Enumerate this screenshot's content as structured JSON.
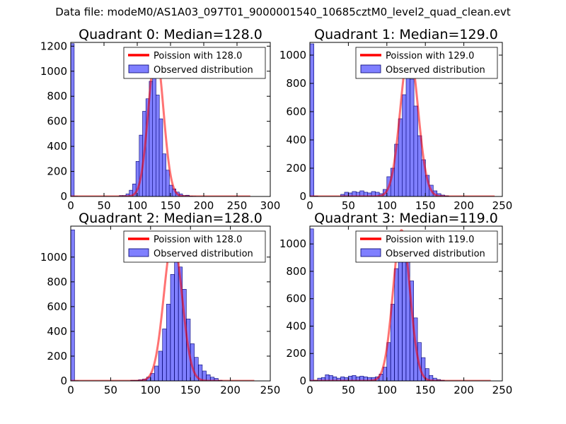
{
  "figure": {
    "suptitle": "Data file: modeM0/AS1A03_097T01_9000001540_10685cztM0_level2_quad_clean.evt"
  },
  "colors": {
    "poisson": "#ff0000",
    "hist_fill": "#7f7fff",
    "hist_edge": "#00006e",
    "axis": "#000000"
  },
  "chart_data": [
    {
      "type": "bar",
      "title": "Quadrant 0: Median=128.0",
      "xlim": [
        0,
        300
      ],
      "ylim": [
        0,
        1230
      ],
      "xticks": [
        0,
        50,
        100,
        150,
        200,
        250,
        300
      ],
      "yticks": [
        0,
        200,
        400,
        600,
        800,
        1000,
        1200
      ],
      "legend": [
        "Poission with 128.0",
        "Observed distribution"
      ],
      "legend_position": "top-right",
      "bin_width": 5.2,
      "bin_starts": [
        0,
        5.2,
        73,
        78,
        83,
        88,
        93,
        98,
        103,
        108,
        113,
        118,
        123,
        128,
        133,
        138,
        143,
        148,
        153,
        158,
        163,
        168,
        173,
        178,
        183
      ],
      "counts": [
        1220,
        2,
        8,
        8,
        20,
        50,
        100,
        280,
        490,
        680,
        780,
        920,
        1080,
        810,
        620,
        340,
        210,
        90,
        60,
        35,
        20,
        8,
        10,
        3,
        2
      ],
      "poisson_mean": 128,
      "poisson_peak": 1150,
      "poisson_range": [
        0,
        270
      ]
    },
    {
      "type": "bar",
      "title": "Quadrant 1: Median=129.0",
      "xlim": [
        0,
        250
      ],
      "ylim": [
        0,
        1090
      ],
      "xticks": [
        0,
        50,
        100,
        150,
        200,
        250
      ],
      "yticks": [
        0,
        200,
        400,
        600,
        800,
        1000
      ],
      "legend": [
        "Poission with 129.0",
        "Observed distribution"
      ],
      "legend_position": "top-right",
      "bin_width": 5.2,
      "bin_starts": [
        0,
        5.2,
        40,
        45,
        50,
        55,
        60,
        65,
        70,
        75,
        80,
        85,
        90,
        95,
        100,
        105,
        110,
        115,
        120,
        125,
        130,
        135,
        140,
        145,
        150,
        155,
        160,
        165,
        170,
        175
      ],
      "counts": [
        1080,
        3,
        15,
        30,
        25,
        35,
        30,
        40,
        30,
        25,
        35,
        30,
        20,
        50,
        140,
        200,
        370,
        550,
        720,
        900,
        830,
        640,
        430,
        260,
        150,
        80,
        40,
        20,
        10,
        5
      ],
      "poisson_mean": 129,
      "poisson_peak": 1040,
      "poisson_range": [
        0,
        240
      ]
    },
    {
      "type": "bar",
      "title": "Quadrant 2: Median=128.0",
      "xlim": [
        0,
        250
      ],
      "ylim": [
        0,
        1250
      ],
      "xticks": [
        0,
        50,
        100,
        150,
        200,
        250
      ],
      "yticks": [
        0,
        200,
        400,
        600,
        800,
        1000
      ],
      "legend": [
        "Poission with 128.0",
        "Observed distribution"
      ],
      "legend_position": "top-right",
      "bin_width": 4.8,
      "bin_starts": [
        0,
        4.8,
        75,
        80,
        85,
        90,
        95,
        100,
        105,
        110,
        115,
        120,
        125,
        130,
        135,
        140,
        145,
        150,
        155,
        160,
        165,
        170,
        175,
        180,
        185
      ],
      "counts": [
        1220,
        2,
        5,
        5,
        10,
        15,
        30,
        60,
        120,
        240,
        420,
        620,
        860,
        1000,
        920,
        740,
        500,
        300,
        190,
        130,
        80,
        50,
        30,
        20,
        5
      ],
      "poisson_mean": 128,
      "poisson_peak": 1150,
      "poisson_range": [
        0,
        230
      ]
    },
    {
      "type": "bar",
      "title": "Quadrant 3: Median=119.0",
      "xlim": [
        0,
        250
      ],
      "ylim": [
        0,
        1130
      ],
      "xticks": [
        0,
        50,
        100,
        150,
        200,
        250
      ],
      "yticks": [
        0,
        200,
        400,
        600,
        800,
        1000
      ],
      "legend": [
        "Poission with 119.0",
        "Observed distribution"
      ],
      "legend_position": "top-right",
      "bin_width": 4.8,
      "bin_starts": [
        0,
        4.8,
        10,
        15,
        20,
        25,
        30,
        35,
        40,
        45,
        50,
        55,
        60,
        65,
        70,
        75,
        80,
        85,
        90,
        95,
        100,
        105,
        110,
        115,
        120,
        125,
        130,
        135,
        140,
        145,
        150,
        155,
        160,
        165,
        170
      ],
      "counts": [
        1110,
        5,
        20,
        25,
        45,
        40,
        30,
        20,
        30,
        25,
        35,
        40,
        30,
        35,
        30,
        25,
        25,
        30,
        50,
        100,
        280,
        560,
        820,
        1000,
        930,
        940,
        730,
        460,
        280,
        170,
        90,
        40,
        20,
        10,
        5
      ],
      "poisson_mean": 119,
      "poisson_peak": 1100,
      "poisson_range": [
        0,
        235
      ]
    }
  ]
}
